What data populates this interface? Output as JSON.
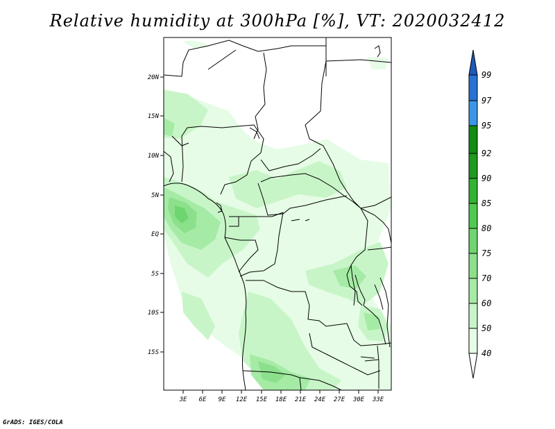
{
  "title": "Relative humidity at 300hPa [%], VT: 2020032412",
  "credit": "GrADS: IGES/COLA",
  "map": {
    "lon_range": [
      0,
      35
    ],
    "lat_range": [
      -20,
      25
    ],
    "y_ticks": [
      "20N",
      "15N",
      "10N",
      "5N",
      "EQ",
      "5S",
      "10S",
      "15S"
    ],
    "x_ticks": [
      "3E",
      "6E",
      "9E",
      "12E",
      "15E",
      "18E",
      "21E",
      "24E",
      "27E",
      "30E",
      "33E"
    ]
  },
  "colorbar": {
    "levels": [
      "40",
      "50",
      "60",
      "70",
      "75",
      "80",
      "85",
      "90",
      "92",
      "95",
      "97",
      "99"
    ],
    "colors": [
      "#ffffff",
      "#e6fce6",
      "#c8f5c8",
      "#a5eba5",
      "#8ce08c",
      "#6fd66f",
      "#4fc94f",
      "#32b432",
      "#1e9a1e",
      "#128c12",
      "#3c96e6",
      "#2873d2",
      "#1e5ab9"
    ]
  }
}
